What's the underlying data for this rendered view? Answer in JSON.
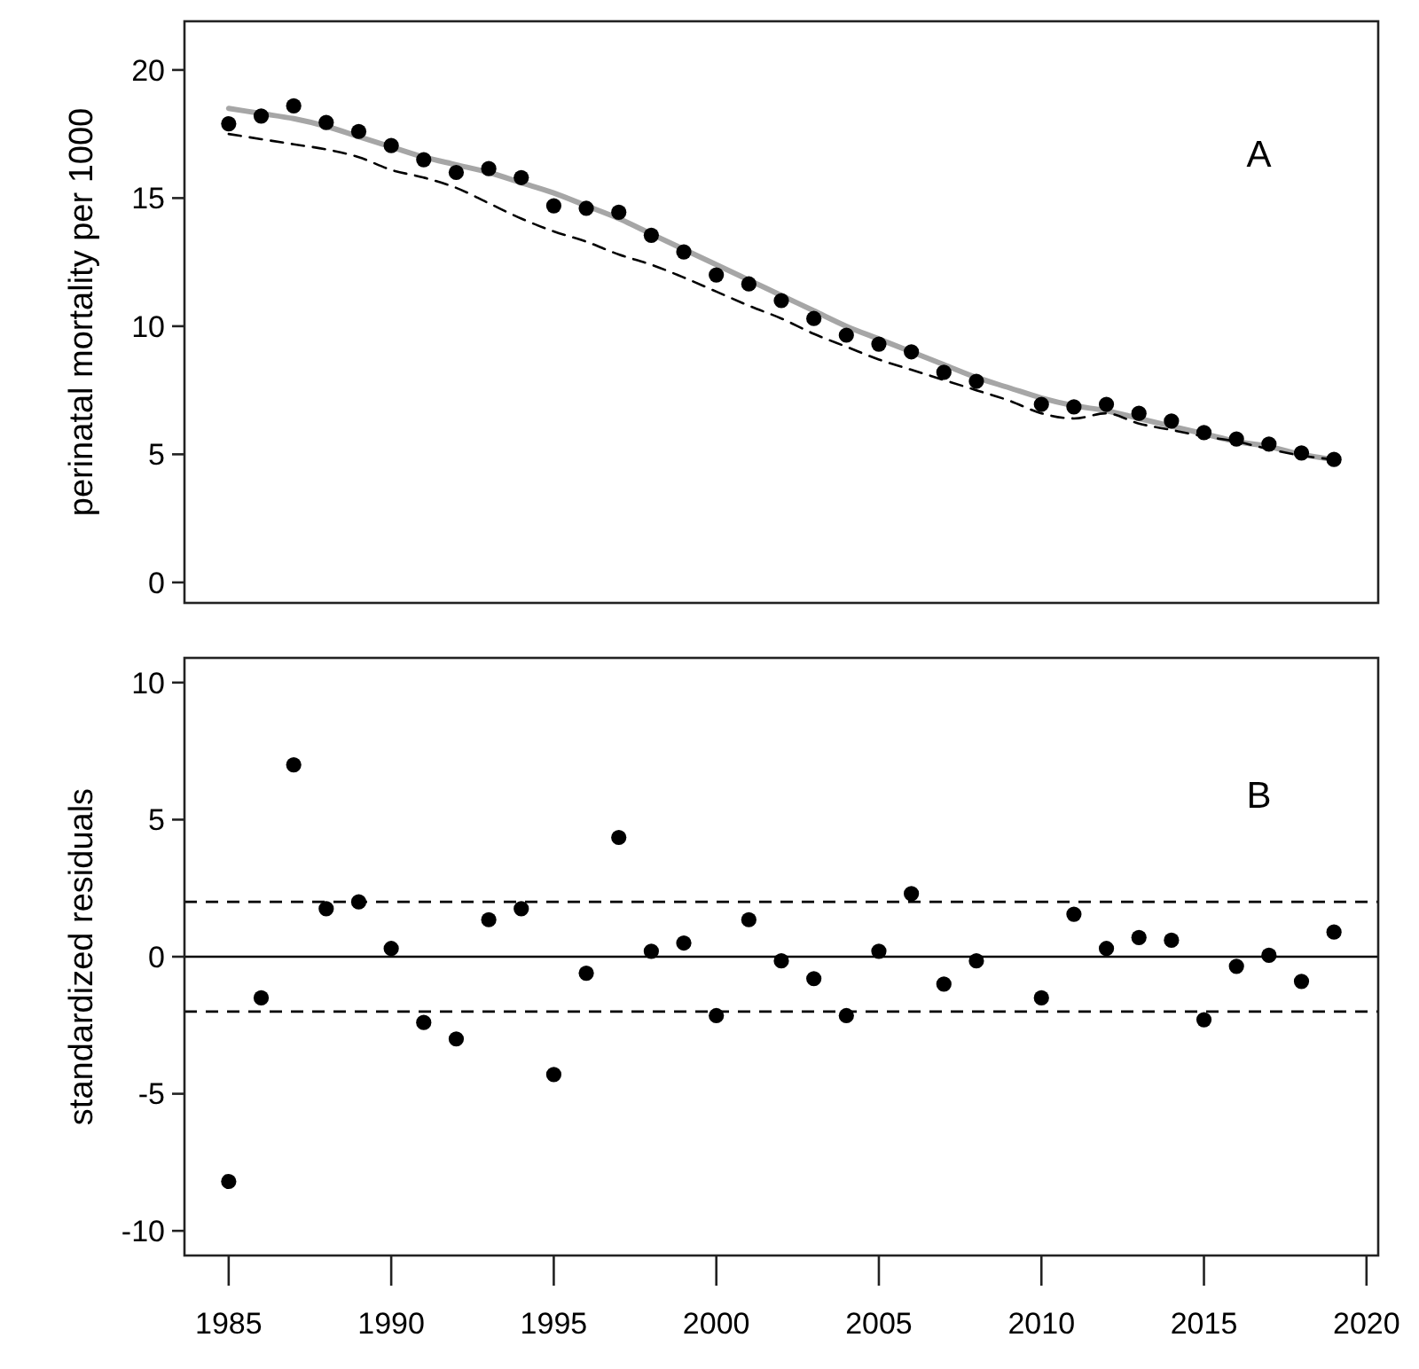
{
  "chart_data": [
    {
      "type": "scatter",
      "ylabel": "perinatal mortality per 1000",
      "annotations": [
        "A"
      ],
      "xlim": [
        1983.64,
        2020.36
      ],
      "ylim": [
        -0.8,
        21.9
      ],
      "yticks": [
        0,
        5,
        10,
        15,
        20
      ],
      "tick_labels": "y",
      "series": [
        {
          "type": "line",
          "color": "#a6a6a6",
          "x": [
            1985,
            1986,
            1987,
            1988,
            1989,
            1990,
            1991,
            1992,
            1993,
            1994,
            1995,
            1996,
            1997,
            1998,
            1999,
            2000,
            2001,
            2002,
            2003,
            2004,
            2005,
            2006,
            2007,
            2008,
            2009,
            2010,
            2011,
            2012,
            2013,
            2014,
            2015,
            2016,
            2017,
            2018,
            2019
          ],
          "values": [
            18.5,
            18.3,
            18.1,
            17.8,
            17.4,
            17.0,
            16.6,
            16.3,
            16.0,
            15.6,
            15.2,
            14.7,
            14.2,
            13.6,
            13.0,
            12.4,
            11.8,
            11.2,
            10.6,
            10.0,
            9.5,
            9.0,
            8.5,
            8.0,
            7.6,
            7.2,
            6.9,
            6.7,
            6.4,
            6.1,
            5.8,
            5.5,
            5.3,
            5.0,
            4.8
          ]
        },
        {
          "type": "line",
          "color": "#000000",
          "line_style": "dashed",
          "x": [
            1985,
            1986,
            1987,
            1988,
            1989,
            1990,
            1991,
            1992,
            1993,
            1994,
            1995,
            1996,
            1997,
            1998,
            1999,
            2000,
            2001,
            2002,
            2003,
            2004,
            2005,
            2006,
            2007,
            2008,
            2009,
            2010,
            2011,
            2012,
            2013,
            2014,
            2015,
            2016,
            2017,
            2018,
            2019
          ],
          "values": [
            17.5,
            17.3,
            17.1,
            16.9,
            16.6,
            16.1,
            15.8,
            15.4,
            14.8,
            14.2,
            13.7,
            13.3,
            12.8,
            12.4,
            11.9,
            11.35,
            10.8,
            10.3,
            9.7,
            9.2,
            8.7,
            8.3,
            7.9,
            7.5,
            7.1,
            6.6,
            6.4,
            6.6,
            6.2,
            5.95,
            5.7,
            5.5,
            5.2,
            4.95,
            4.8
          ]
        },
        {
          "type": "scatter",
          "color": "#000000",
          "marker": "circle",
          "x": [
            1985,
            1986,
            1987,
            1988,
            1989,
            1990,
            1991,
            1992,
            1993,
            1994,
            1995,
            1996,
            1997,
            1998,
            1999,
            2000,
            2001,
            2002,
            2003,
            2004,
            2005,
            2006,
            2007,
            2008,
            2010,
            2011,
            2012,
            2013,
            2014,
            2015,
            2016,
            2017,
            2018,
            2019
          ],
          "values": [
            17.9,
            18.2,
            18.6,
            17.95,
            17.6,
            17.05,
            16.5,
            16.0,
            16.15,
            15.8,
            14.7,
            14.6,
            14.45,
            13.55,
            12.9,
            12.0,
            11.65,
            11.0,
            10.3,
            9.65,
            9.3,
            9.0,
            8.2,
            7.85,
            6.95,
            6.85,
            6.95,
            6.6,
            6.3,
            5.85,
            5.6,
            5.4,
            5.05,
            4.8
          ]
        }
      ]
    },
    {
      "type": "scatter",
      "ylabel": "standardized residuals",
      "annotations": [
        "B"
      ],
      "xlim": [
        1983.64,
        2020.36
      ],
      "xticks": [
        1985,
        1990,
        1995,
        2000,
        2005,
        2010,
        2015,
        2020
      ],
      "ylim": [
        -10.9,
        10.9
      ],
      "yticks": [
        -10,
        -5,
        0,
        5,
        10
      ],
      "ref_lines": [
        {
          "axis": "y",
          "value": 0,
          "color": "#000000",
          "line_style": "solid"
        },
        {
          "axis": "y",
          "value": 2,
          "color": "#000000",
          "line_style": "dashed"
        },
        {
          "axis": "y",
          "value": -2,
          "color": "#000000",
          "line_style": "dashed"
        }
      ],
      "series": [
        {
          "type": "scatter",
          "color": "#000000",
          "marker": "circle",
          "x": [
            1985,
            1986,
            1987,
            1988,
            1989,
            1990,
            1991,
            1992,
            1993,
            1994,
            1995,
            1996,
            1997,
            1998,
            1999,
            2000,
            2001,
            2002,
            2003,
            2004,
            2005,
            2006,
            2007,
            2008,
            2010,
            2011,
            2012,
            2013,
            2014,
            2015,
            2016,
            2017,
            2018,
            2019
          ],
          "values": [
            -8.2,
            -1.5,
            7.0,
            1.75,
            2.0,
            0.3,
            -2.4,
            -3.0,
            1.35,
            1.75,
            -4.3,
            -0.6,
            4.35,
            0.2,
            0.5,
            -2.15,
            1.35,
            -0.15,
            -0.8,
            -2.15,
            0.2,
            2.3,
            -1.0,
            -0.15,
            -1.5,
            1.55,
            0.3,
            0.7,
            0.6,
            -2.3,
            -0.35,
            0.05,
            -0.9,
            0.9
          ]
        }
      ]
    }
  ]
}
